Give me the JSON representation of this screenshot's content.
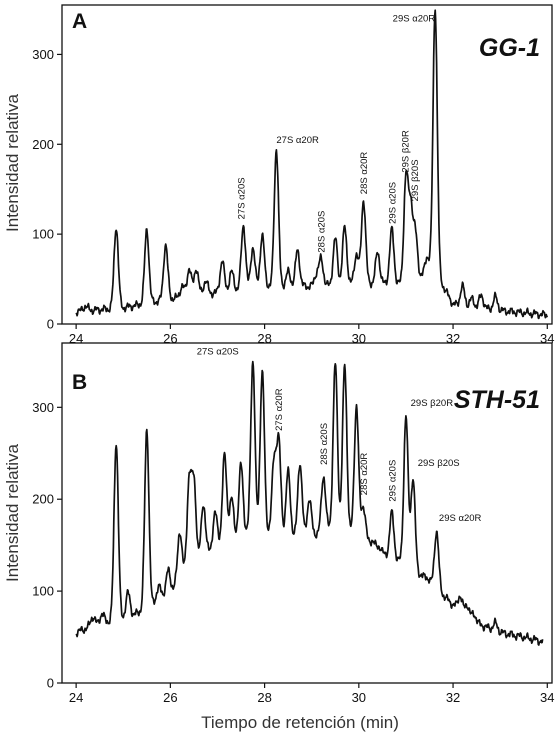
{
  "figure": {
    "xlabel": "Tiempo de retención (min)",
    "colors": {
      "trace": "#111111",
      "axes": "#111111",
      "background": "#ffffff"
    }
  },
  "chart_data": [
    {
      "type": "line",
      "panel": "A",
      "sample": "GG-1",
      "ylabel": "Intensidad relativa",
      "xlim": [
        23.7,
        34.1
      ],
      "ylim": [
        0,
        355
      ],
      "x_ticks": [
        24,
        26,
        28,
        30,
        32,
        34
      ],
      "y_ticks": [
        0,
        100,
        200,
        300
      ],
      "series": [
        {
          "baseline": [
            [
              24.0,
              14
            ],
            [
              25.0,
              18
            ],
            [
              26.0,
              28
            ],
            [
              27.0,
              35
            ],
            [
              28.0,
              42
            ],
            [
              29.0,
              42
            ],
            [
              30.0,
              45
            ],
            [
              31.0,
              45
            ],
            [
              31.6,
              60
            ],
            [
              32.0,
              22
            ],
            [
              33.0,
              15
            ],
            [
              34.0,
              10
            ]
          ],
          "peaks": [
            [
              24.2,
              20
            ],
            [
              24.85,
              108
            ],
            [
              25.3,
              18
            ],
            [
              25.5,
              105
            ],
            [
              25.9,
              88
            ],
            [
              26.15,
              28
            ],
            [
              26.25,
              42
            ],
            [
              26.4,
              62
            ],
            [
              26.55,
              62
            ],
            [
              26.75,
              48
            ],
            [
              27.1,
              70
            ],
            [
              27.3,
              58
            ],
            [
              27.55,
              110
            ],
            [
              27.75,
              85
            ],
            [
              27.95,
              98
            ],
            [
              28.25,
              195
            ],
            [
              28.5,
              58
            ],
            [
              28.7,
              82
            ],
            [
              29.1,
              55
            ],
            [
              29.2,
              72
            ],
            [
              29.5,
              95
            ],
            [
              29.7,
              108
            ],
            [
              29.95,
              78
            ],
            [
              30.1,
              138
            ],
            [
              30.4,
              80
            ],
            [
              30.7,
              105
            ],
            [
              31.0,
              162
            ],
            [
              31.1,
              130
            ],
            [
              31.2,
              100
            ],
            [
              31.45,
              75
            ],
            [
              31.62,
              352
            ],
            [
              31.9,
              28
            ],
            [
              32.2,
              42
            ],
            [
              32.4,
              28
            ],
            [
              32.6,
              32
            ],
            [
              32.9,
              30
            ]
          ]
        }
      ],
      "annotations": [
        {
          "text": "27S  α20S",
          "x": 27.5,
          "y": 112,
          "orient": "vertical"
        },
        {
          "text": "27S  α20R",
          "x": 28.25,
          "y": 197,
          "orient": "horizontal"
        },
        {
          "text": "28S  α20S",
          "x": 29.2,
          "y": 75,
          "orient": "vertical"
        },
        {
          "text": "28S  α20R",
          "x": 30.1,
          "y": 140,
          "orient": "vertical"
        },
        {
          "text": "29S  α20S",
          "x": 30.7,
          "y": 107,
          "orient": "vertical"
        },
        {
          "text": "29S  β20R",
          "x": 30.98,
          "y": 164,
          "orient": "vertical"
        },
        {
          "text": "29S  β20S",
          "x": 31.18,
          "y": 132,
          "orient": "vertical"
        },
        {
          "text": "29S  α20R",
          "x": 31.62,
          "y": 332,
          "orient": "horizontal",
          "anchor": "end"
        }
      ]
    },
    {
      "type": "line",
      "panel": "B",
      "sample": "STH-51",
      "ylabel": "Intensidad relativa",
      "xlim": [
        23.7,
        34.1
      ],
      "ylim": [
        0,
        370
      ],
      "x_ticks": [
        24,
        26,
        28,
        30,
        32,
        34
      ],
      "y_ticks": [
        0,
        100,
        200,
        300
      ],
      "series": [
        {
          "baseline": [
            [
              24.0,
              55
            ],
            [
              24.5,
              65
            ],
            [
              25.0,
              70
            ],
            [
              25.5,
              80
            ],
            [
              26.0,
              100
            ],
            [
              26.5,
              130
            ],
            [
              27.0,
              150
            ],
            [
              27.5,
              160
            ],
            [
              28.0,
              165
            ],
            [
              28.5,
              160
            ],
            [
              29.0,
              160
            ],
            [
              29.5,
              170
            ],
            [
              30.0,
              160
            ],
            [
              30.5,
              140
            ],
            [
              31.0,
              130
            ],
            [
              31.5,
              110
            ],
            [
              32.0,
              85
            ],
            [
              32.5,
              65
            ],
            [
              33.0,
              55
            ],
            [
              33.5,
              50
            ],
            [
              33.9,
              45
            ]
          ],
          "peaks": [
            [
              24.35,
              72
            ],
            [
              24.55,
              75
            ],
            [
              24.85,
              262
            ],
            [
              25.1,
              98
            ],
            [
              25.5,
              275
            ],
            [
              25.75,
              105
            ],
            [
              25.95,
              122
            ],
            [
              26.2,
              165
            ],
            [
              26.4,
              222
            ],
            [
              26.5,
              218
            ],
            [
              26.7,
              195
            ],
            [
              26.95,
              185
            ],
            [
              27.15,
              248
            ],
            [
              27.3,
              200
            ],
            [
              27.5,
              238
            ],
            [
              27.75,
              350
            ],
            [
              27.95,
              338
            ],
            [
              28.2,
              240
            ],
            [
              28.3,
              262
            ],
            [
              28.5,
              230
            ],
            [
              28.75,
              240
            ],
            [
              28.95,
              200
            ],
            [
              29.25,
              225
            ],
            [
              29.5,
              348
            ],
            [
              29.7,
              345
            ],
            [
              29.95,
              302
            ],
            [
              30.1,
              192
            ],
            [
              30.3,
              155
            ],
            [
              30.45,
              148
            ],
            [
              30.7,
              185
            ],
            [
              31.0,
              290
            ],
            [
              31.15,
              222
            ],
            [
              31.45,
              115
            ],
            [
              31.65,
              165
            ],
            [
              32.15,
              95
            ],
            [
              32.3,
              85
            ],
            [
              32.45,
              75
            ],
            [
              32.9,
              65
            ]
          ]
        }
      ],
      "annotations": [
        {
          "text": "27S  α20S",
          "x": 27.45,
          "y": 353,
          "orient": "horizontal",
          "anchor": "end"
        },
        {
          "text": "27S  α20R",
          "x": 28.3,
          "y": 270,
          "orient": "vertical"
        },
        {
          "text": "28S  α20S",
          "x": 29.25,
          "y": 233,
          "orient": "vertical"
        },
        {
          "text": "28S  α20R",
          "x": 30.1,
          "y": 200,
          "orient": "vertical"
        },
        {
          "text": "29S  α20S",
          "x": 30.7,
          "y": 193,
          "orient": "vertical"
        },
        {
          "text": "29S  β20R",
          "x": 31.1,
          "y": 297,
          "orient": "horizontal"
        },
        {
          "text": "29S  β20S",
          "x": 31.25,
          "y": 232,
          "orient": "horizontal"
        },
        {
          "text": "29S  α20R",
          "x": 31.7,
          "y": 172,
          "orient": "horizontal"
        }
      ]
    }
  ]
}
